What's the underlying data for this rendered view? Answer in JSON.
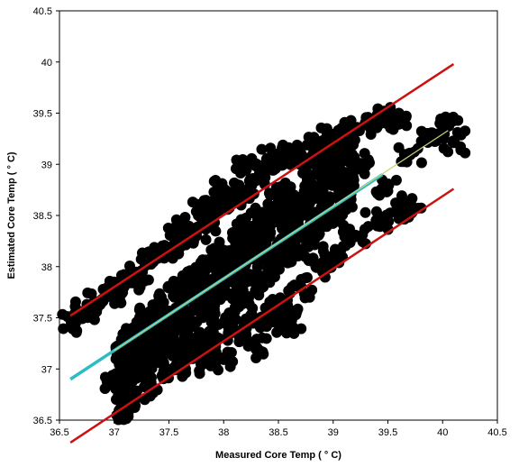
{
  "chart_data": {
    "type": "scatter",
    "xlabel": "Measured Core Temp ( ° C)",
    "ylabel": "Estimated Core Temp ( ° C)",
    "xlim": [
      36.5,
      40.5
    ],
    "ylim": [
      36.5,
      40.5
    ],
    "x_ticks": [
      "36.5",
      "37",
      "37.5",
      "38",
      "38.5",
      "39",
      "39.5",
      "40",
      "40.5"
    ],
    "y_ticks": [
      "36.5",
      "37",
      "37.5",
      "38",
      "38.5",
      "39",
      "39.5",
      "40",
      "40.5"
    ],
    "grid": false,
    "legend": "none",
    "colors": {
      "points": "#000000",
      "limits": "#cc1111",
      "regression": "#2bbcc4",
      "identity": "#c8d27a"
    },
    "series": [
      {
        "kind": "scatter",
        "points": [
          [
            36.62,
            37.45
          ],
          [
            36.72,
            37.55
          ],
          [
            36.85,
            37.65
          ],
          [
            36.95,
            37.72
          ],
          [
            37.05,
            37.75
          ],
          [
            37.15,
            37.85
          ],
          [
            37.25,
            37.95
          ],
          [
            37.35,
            38.05
          ],
          [
            37.45,
            38.1
          ],
          [
            37.55,
            38.2
          ],
          [
            37.65,
            38.3
          ],
          [
            37.75,
            38.35
          ],
          [
            37.85,
            38.45
          ],
          [
            37.95,
            38.55
          ],
          [
            38.05,
            38.65
          ],
          [
            38.15,
            38.7
          ],
          [
            38.25,
            38.8
          ],
          [
            38.35,
            38.9
          ],
          [
            38.45,
            38.95
          ],
          [
            38.55,
            39.05
          ],
          [
            38.7,
            39.1
          ],
          [
            38.85,
            39.2
          ],
          [
            39.0,
            39.25
          ],
          [
            39.15,
            39.3
          ],
          [
            39.3,
            39.4
          ],
          [
            39.45,
            39.45
          ],
          [
            39.7,
            39.1
          ],
          [
            39.9,
            39.3
          ],
          [
            40.05,
            39.38
          ],
          [
            40.1,
            39.22
          ],
          [
            37.0,
            36.85
          ],
          [
            37.1,
            37.0
          ],
          [
            37.25,
            37.1
          ],
          [
            37.4,
            37.2
          ],
          [
            37.6,
            37.15
          ],
          [
            37.75,
            37.2
          ],
          [
            37.9,
            37.3
          ],
          [
            38.05,
            37.35
          ],
          [
            38.2,
            37.4
          ],
          [
            38.35,
            37.5
          ],
          [
            38.5,
            37.6
          ],
          [
            38.6,
            37.5
          ],
          [
            38.7,
            37.8
          ],
          [
            38.85,
            38.0
          ],
          [
            39.0,
            38.1
          ],
          [
            39.2,
            38.3
          ],
          [
            39.4,
            38.45
          ],
          [
            39.6,
            38.55
          ],
          [
            39.7,
            38.62
          ],
          [
            37.3,
            37.5
          ],
          [
            37.5,
            37.8
          ],
          [
            37.7,
            37.9
          ],
          [
            37.9,
            38.0
          ],
          [
            38.1,
            38.1
          ],
          [
            38.3,
            38.3
          ],
          [
            38.5,
            38.5
          ],
          [
            38.7,
            38.6
          ],
          [
            38.9,
            38.75
          ],
          [
            39.1,
            38.9
          ],
          [
            37.2,
            37.3
          ],
          [
            37.45,
            37.4
          ],
          [
            37.65,
            37.55
          ],
          [
            37.85,
            37.65
          ],
          [
            38.0,
            37.8
          ],
          [
            38.2,
            37.9
          ],
          [
            38.4,
            38.05
          ],
          [
            38.6,
            38.15
          ],
          [
            38.8,
            38.3
          ],
          [
            39.0,
            38.5
          ],
          [
            37.55,
            37.0
          ],
          [
            37.8,
            37.05
          ],
          [
            38.0,
            37.1
          ],
          [
            38.3,
            37.2
          ],
          [
            38.55,
            37.45
          ],
          [
            37.6,
            38.4
          ],
          [
            37.8,
            38.55
          ],
          [
            38.0,
            38.75
          ],
          [
            38.2,
            38.95
          ],
          [
            38.4,
            39.05
          ],
          [
            38.6,
            39.1
          ],
          [
            38.9,
            39.15
          ],
          [
            39.1,
            39.2
          ],
          [
            39.25,
            39.0
          ],
          [
            39.5,
            38.8
          ],
          [
            39.6,
            39.4
          ]
        ]
      },
      {
        "kind": "line",
        "role": "upper-limit",
        "points": [
          [
            36.6,
            37.52
          ],
          [
            40.1,
            39.98
          ]
        ]
      },
      {
        "kind": "line",
        "role": "lower-limit",
        "points": [
          [
            36.6,
            36.28
          ],
          [
            40.1,
            38.76
          ]
        ]
      },
      {
        "kind": "line",
        "role": "regression",
        "points": [
          [
            36.6,
            36.9
          ],
          [
            39.45,
            38.9
          ]
        ]
      },
      {
        "kind": "line",
        "role": "fit",
        "points": [
          [
            37.0,
            37.18
          ],
          [
            40.05,
            39.33
          ]
        ]
      }
    ]
  }
}
